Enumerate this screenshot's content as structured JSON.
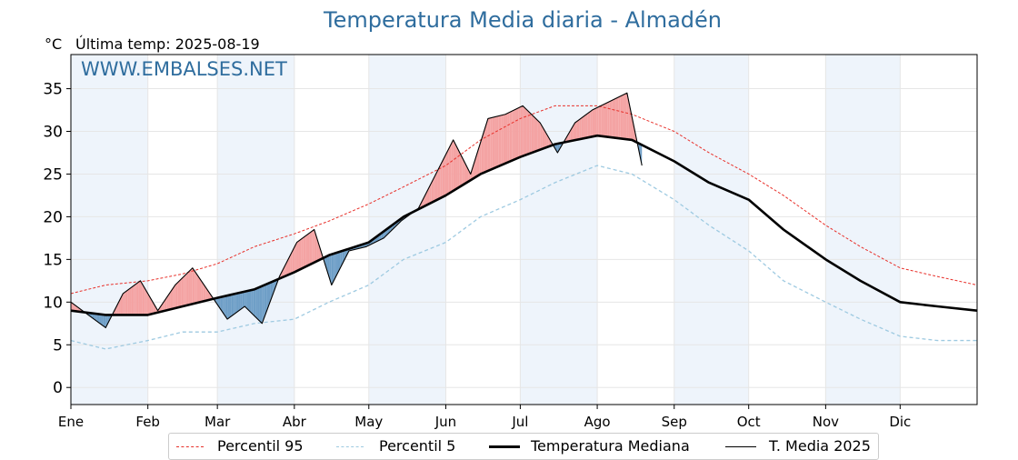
{
  "title": "Temperatura Media diaria - Almadén",
  "unit": "°C",
  "last_temp": "Última temp: 2025-08-19",
  "watermark": "WWW.EMBALSES.NET",
  "colors": {
    "p95": "#e8302a",
    "p5": "#9ecae1",
    "median": "#000000",
    "t2025": "#000000",
    "above_fill": "#f4a3a3",
    "below_fill": "#6f9fc7",
    "month_band": "#eef4fb",
    "title": "#2f6d9e"
  },
  "legend": {
    "p95": "Percentil 95",
    "p5": "Percentil 5",
    "median": "Temperatura Mediana",
    "t2025": "T. Media 2025"
  },
  "chart_data": {
    "type": "line",
    "ylim": [
      -2,
      39
    ],
    "yticks": [
      0,
      5,
      10,
      15,
      20,
      25,
      30,
      35
    ],
    "xlim": [
      1,
      366
    ],
    "month_labels": [
      "Ene",
      "Feb",
      "Mar",
      "Abr",
      "May",
      "Jun",
      "Jul",
      "Ago",
      "Sep",
      "Oct",
      "Nov",
      "Dic"
    ],
    "month_starts": [
      1,
      32,
      60,
      91,
      121,
      152,
      182,
      213,
      244,
      274,
      305,
      335
    ],
    "grid": true,
    "legend_position": "bottom",
    "series": [
      {
        "name": "Percentil 95",
        "x": [
          1,
          15,
          32,
          46,
          60,
          75,
          91,
          105,
          121,
          135,
          152,
          166,
          182,
          196,
          213,
          227,
          244,
          258,
          274,
          288,
          305,
          319,
          335,
          350,
          366
        ],
        "values": [
          11.0,
          12.0,
          12.5,
          13.3,
          14.5,
          16.5,
          18.0,
          19.5,
          21.5,
          23.5,
          26.0,
          29.0,
          31.5,
          33.0,
          33.0,
          32.0,
          30.0,
          27.5,
          25.0,
          22.5,
          19.0,
          16.5,
          14.0,
          13.0,
          12.0
        ]
      },
      {
        "name": "Percentil 5",
        "x": [
          1,
          15,
          32,
          46,
          60,
          75,
          91,
          105,
          121,
          135,
          152,
          166,
          182,
          196,
          213,
          227,
          244,
          258,
          274,
          288,
          305,
          319,
          335,
          350,
          366
        ],
        "values": [
          5.5,
          4.5,
          5.5,
          6.5,
          6.5,
          7.5,
          8.0,
          10.0,
          12.0,
          15.0,
          17.0,
          20.0,
          22.0,
          24.0,
          26.0,
          25.0,
          22.0,
          19.0,
          16.0,
          12.5,
          10.0,
          8.0,
          6.0,
          5.5,
          5.5
        ]
      },
      {
        "name": "Temperatura Mediana",
        "x": [
          1,
          15,
          32,
          46,
          60,
          75,
          91,
          105,
          121,
          135,
          152,
          166,
          182,
          196,
          213,
          227,
          244,
          258,
          274,
          288,
          305,
          319,
          335,
          350,
          366
        ],
        "values": [
          9.0,
          8.5,
          8.5,
          9.5,
          10.5,
          11.5,
          13.5,
          15.5,
          17.0,
          20.0,
          22.5,
          25.0,
          27.0,
          28.5,
          29.5,
          29.0,
          26.5,
          24.0,
          22.0,
          18.5,
          15.0,
          12.5,
          10.0,
          9.5,
          9.0
        ]
      },
      {
        "name": "T. Media 2025",
        "x": [
          1,
          8,
          15,
          22,
          29,
          36,
          43,
          50,
          57,
          64,
          71,
          78,
          85,
          92,
          99,
          106,
          113,
          120,
          127,
          134,
          141,
          148,
          155,
          162,
          169,
          176,
          183,
          190,
          197,
          204,
          211,
          218,
          225,
          231
        ],
        "values": [
          10.0,
          8.5,
          7.0,
          11.0,
          12.5,
          9.0,
          12.0,
          14.0,
          11.0,
          8.0,
          9.5,
          7.5,
          13.0,
          17.0,
          18.5,
          12.0,
          16.0,
          16.5,
          17.5,
          19.5,
          21.0,
          25.0,
          29.0,
          25.0,
          31.5,
          32.0,
          33.0,
          31.0,
          27.5,
          31.0,
          32.5,
          33.5,
          34.5,
          26.0
        ]
      }
    ]
  }
}
